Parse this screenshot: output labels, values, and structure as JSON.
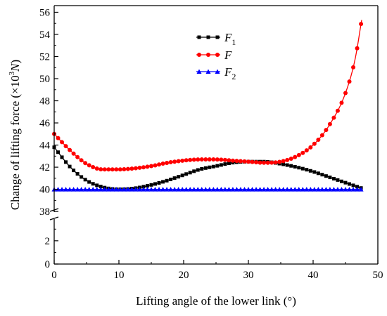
{
  "chart_data": {
    "type": "line",
    "xlabel": "Lifting angle of the lower link (°)",
    "ylabel_parts": [
      "Change of lifting force (×10",
      "3",
      "N",
      ")"
    ],
    "xlim": [
      0,
      50
    ],
    "x_ticks": [
      "0",
      "10",
      "20",
      "30",
      "40",
      "50"
    ],
    "y_ticks_lower": [
      "0",
      "2"
    ],
    "y_ticks_upper": [
      "38",
      "40",
      "42",
      "44",
      "46",
      "48",
      "50",
      "52",
      "54",
      "56"
    ],
    "y_axis": "broken",
    "ylim_lower": [
      0,
      3.5
    ],
    "ylim_upper": [
      37.5,
      56.6
    ],
    "legend_position": "top-center",
    "series": [
      {
        "name": "F",
        "subscript": "1",
        "color": "#000000",
        "marker": "square",
        "x": [
          0,
          2.5,
          5,
          7.5,
          10,
          12.5,
          15,
          17.5,
          20,
          22.5,
          25,
          27.5,
          30,
          32.5,
          35,
          37.5,
          40,
          42.5,
          45,
          47.5
        ],
        "y": [
          43.8,
          42.0,
          40.8,
          40.2,
          40.0,
          40.1,
          40.4,
          40.8,
          41.3,
          41.8,
          42.1,
          42.4,
          42.5,
          42.5,
          42.3,
          42.0,
          41.6,
          41.1,
          40.6,
          40.1
        ]
      },
      {
        "name": "F",
        "subscript": "",
        "color": "#ff0000",
        "marker": "circle",
        "x": [
          0,
          2.5,
          5,
          7.5,
          10,
          12.5,
          15,
          17.5,
          20,
          22.5,
          25,
          27.5,
          30,
          32.5,
          35,
          37.5,
          40,
          42.5,
          45,
          46.5,
          47.5
        ],
        "y": [
          45.0,
          43.5,
          42.3,
          41.8,
          41.8,
          41.9,
          42.1,
          42.4,
          42.6,
          42.7,
          42.7,
          42.6,
          42.5,
          42.4,
          42.5,
          43.0,
          44.0,
          45.8,
          48.7,
          51.8,
          55.3
        ]
      },
      {
        "name": "F",
        "subscript": "2",
        "color": "#0000ff",
        "marker": "triangle",
        "x": [
          0,
          47.5
        ],
        "y": [
          40.0,
          40.0
        ]
      }
    ]
  }
}
